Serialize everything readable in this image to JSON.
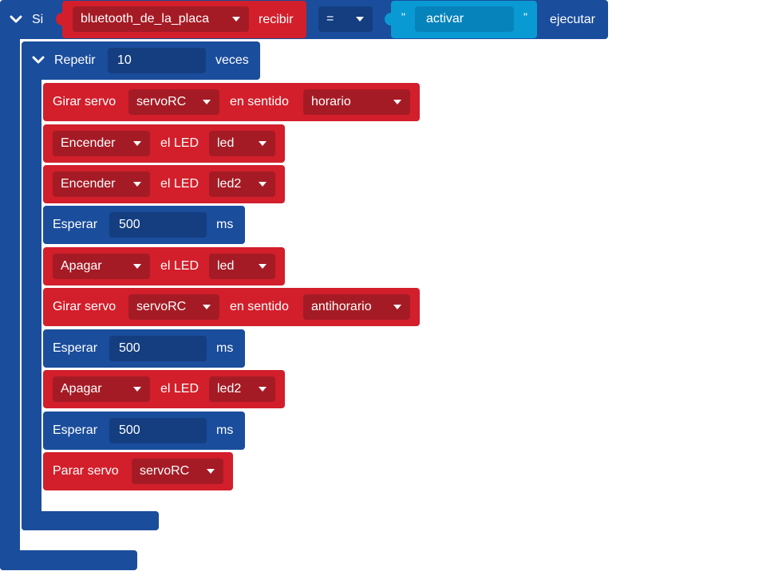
{
  "if_block": {
    "keyword": "Si",
    "source_dropdown": "bluetooth_de_la_placa",
    "receive_label": "recibir",
    "operator_dropdown": "=",
    "quote_open": "\"",
    "string_value": "activar",
    "quote_close": "\"",
    "execute_label": "ejecutar"
  },
  "repeat_block": {
    "keyword": "Repetir",
    "count": "10",
    "times_label": "veces"
  },
  "statements": [
    {
      "type": "servo_turn",
      "label": "Girar servo",
      "servo": "servoRC",
      "dir_label": "en sentido",
      "direction": "horario"
    },
    {
      "type": "led",
      "action": "Encender",
      "led_label": "el LED",
      "led": "led"
    },
    {
      "type": "led",
      "action": "Encender",
      "led_label": "el LED",
      "led": "led2"
    },
    {
      "type": "wait",
      "label": "Esperar",
      "value": "500",
      "unit": "ms"
    },
    {
      "type": "led",
      "action": "Apagar",
      "led_label": "el LED",
      "led": "led"
    },
    {
      "type": "servo_turn",
      "label": "Girar servo",
      "servo": "servoRC",
      "dir_label": "en sentido",
      "direction": "antihorario"
    },
    {
      "type": "wait",
      "label": "Esperar",
      "value": "500",
      "unit": "ms"
    },
    {
      "type": "led",
      "action": "Apagar",
      "led_label": "el LED",
      "led": "led2"
    },
    {
      "type": "wait",
      "label": "Esperar",
      "value": "500",
      "unit": "ms"
    },
    {
      "type": "servo_stop",
      "label": "Parar servo",
      "servo": "servoRC"
    }
  ],
  "icons": {
    "collapse": "chevron-down-icon",
    "dropdown": "caret-down-icon"
  },
  "colors": {
    "blue": "#1a4d9c",
    "red": "#d21f2b",
    "cyan": "#0a9ad3"
  }
}
